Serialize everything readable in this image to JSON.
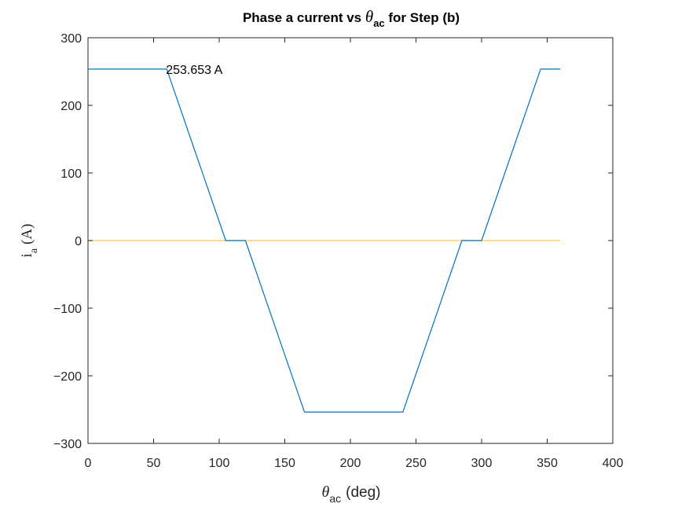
{
  "chart_data": {
    "type": "line",
    "title": {
      "prefix": "Phase  a  current  vs  ",
      "theta": "θ",
      "theta_sub": "ac",
      "suffix": "  for  Step  (b)"
    },
    "xlabel": {
      "theta": "θ",
      "sub": "ac",
      "unit": "(deg)"
    },
    "ylabel": {
      "main": "i",
      "sub": "a",
      "unit": "(A)"
    },
    "xlim": [
      0,
      400
    ],
    "ylim": [
      -300,
      300
    ],
    "xticks": [
      0,
      50,
      100,
      150,
      200,
      250,
      300,
      350,
      400
    ],
    "yticks": [
      300,
      200,
      100,
      0,
      -100,
      -200,
      -300
    ],
    "ytick_labels": [
      "300",
      "200",
      "100",
      "0",
      "−100",
      "−200",
      "−300"
    ],
    "grid": false,
    "series": [
      {
        "color": "#0072BD",
        "x": [
          0,
          60,
          105,
          120,
          165,
          240,
          285,
          300,
          345,
          360
        ],
        "y": [
          253.653,
          253.653,
          0,
          0,
          -253.653,
          -253.653,
          0,
          0,
          253.653,
          253.653
        ]
      },
      {
        "color": "#FFC44D",
        "x": [
          0,
          360
        ],
        "y": [
          0,
          0
        ]
      }
    ],
    "annotations": [
      {
        "text": "253.653  A",
        "x": 60,
        "y": 253.653
      }
    ]
  }
}
